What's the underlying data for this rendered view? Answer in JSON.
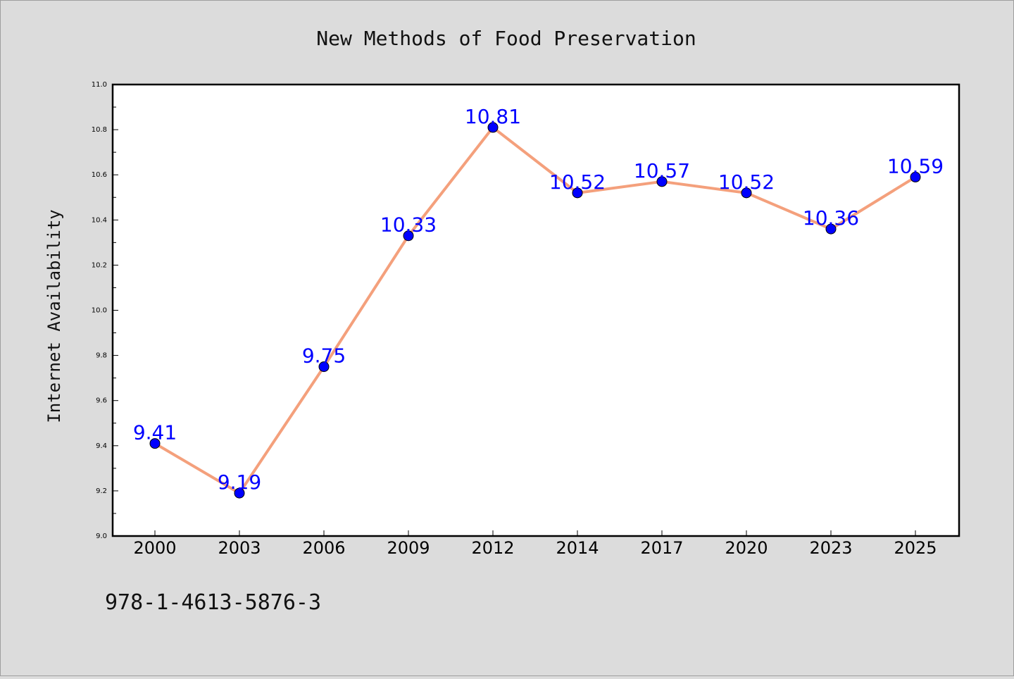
{
  "chart_data": {
    "type": "line",
    "title": "New Methods of Food Preservation",
    "xlabel": "",
    "ylabel": "Internet Availability",
    "categories": [
      "2000",
      "2003",
      "2006",
      "2009",
      "2012",
      "2014",
      "2017",
      "2020",
      "2023",
      "2025"
    ],
    "series": [
      {
        "values": [
          9.41,
          9.19,
          9.75,
          10.33,
          10.81,
          10.52,
          10.57,
          10.52,
          10.36,
          10.59
        ],
        "data_labels": [
          "9.41",
          "9.19",
          "9.75",
          "10.33",
          "10.81",
          "10.52",
          "10.57",
          "10.52",
          "10.36",
          "10.59"
        ]
      }
    ],
    "ylim": [
      9.0,
      11.0
    ],
    "y_ticks": [
      "9.0",
      "9.2",
      "9.4",
      "9.6",
      "9.8",
      "10.0",
      "10.2",
      "10.4",
      "10.6",
      "10.8",
      "11.0"
    ],
    "grid": false,
    "colors": {
      "line": "#f4a07c",
      "marker": "#0000ff",
      "label": "#0000ff",
      "plot_background": "#ffffff",
      "figure_background": "#dcdcdc"
    }
  },
  "footer": {
    "isbn": "978-1-4613-5876-3"
  }
}
